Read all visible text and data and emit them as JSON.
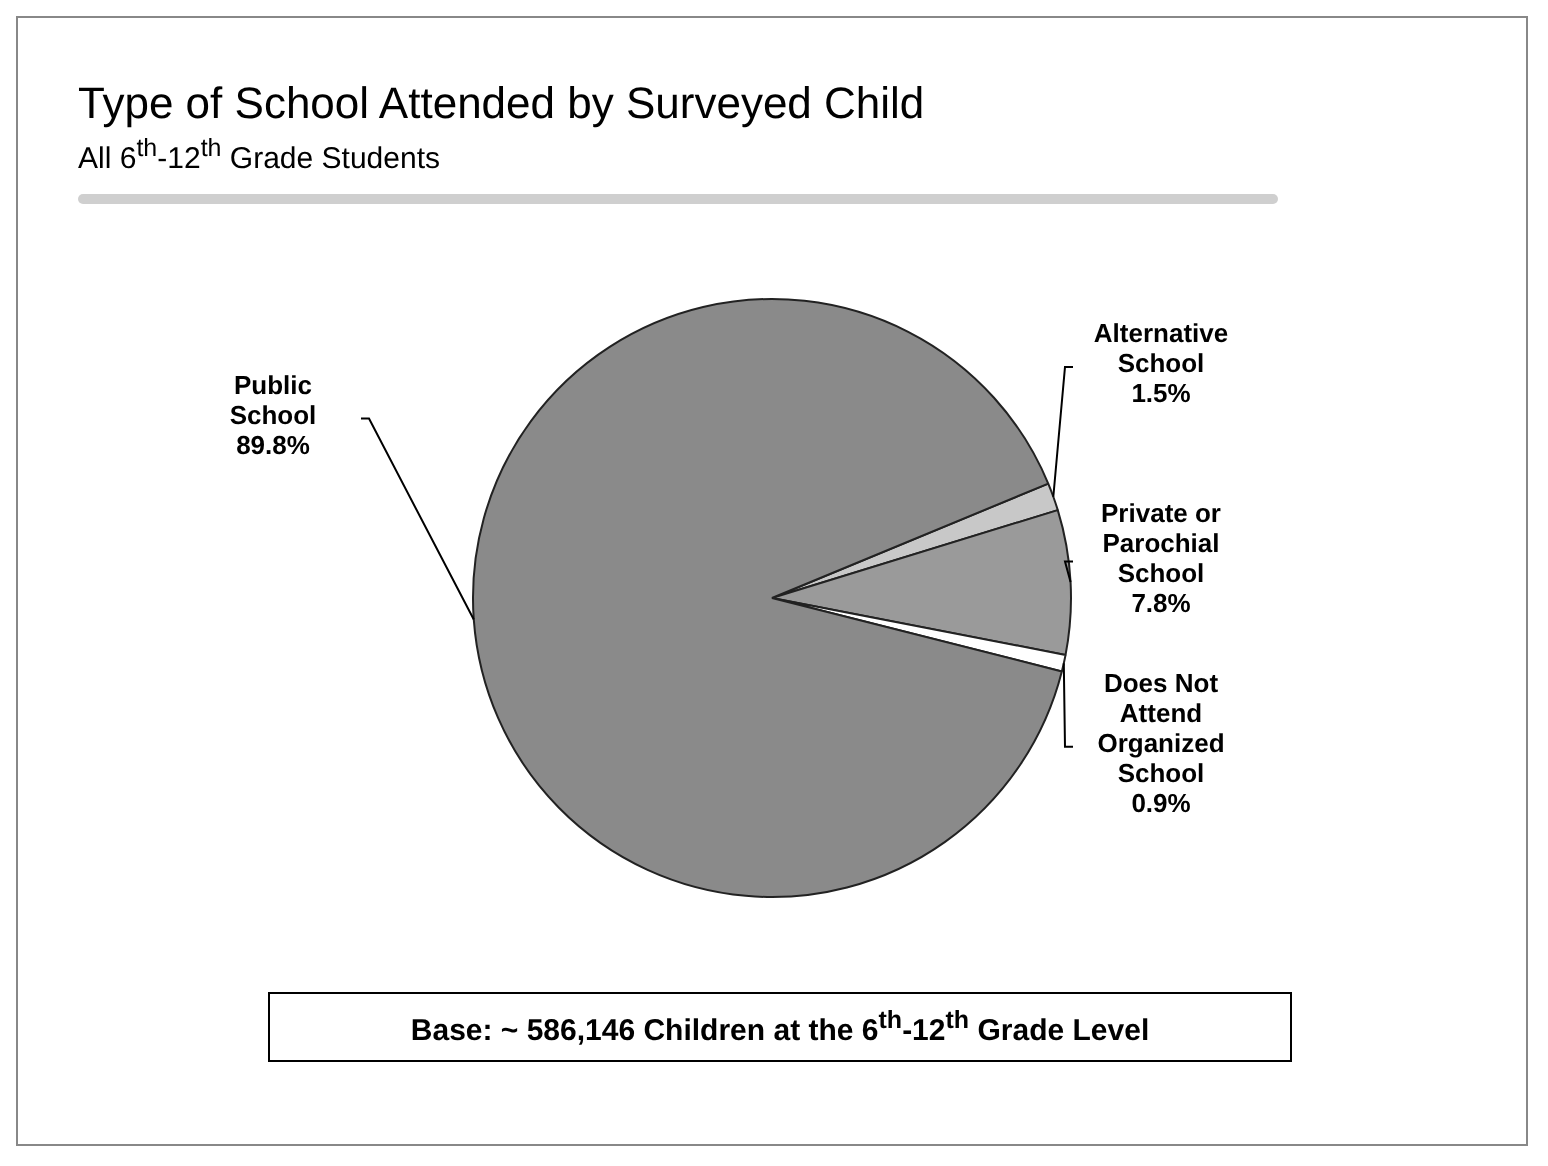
{
  "chart_data": {
    "type": "pie",
    "title": "Type of School Attended by Surveyed Child",
    "subtitle": "All 6$^{th}$-12$^{th}$ Grade Students",
    "categories": [
      "Alternative School",
      "Private or Parochial School",
      "Does Not Attend Organized School",
      "Public School"
    ],
    "values": [
      1.5,
      7.8,
      0.9,
      89.8
    ],
    "value_labels": [
      "1.5%",
      "7.8%",
      "0.9%",
      "89.8%"
    ],
    "colors": [
      "#c8c8c8",
      "#9a9a9a",
      "#ffffff",
      "#8a8a8a"
    ],
    "annotations": [
      "Base: ~ 586,146 Children at the 6$^{th}$-12$^{th}$ Grade Level"
    ],
    "legend": false
  }
}
